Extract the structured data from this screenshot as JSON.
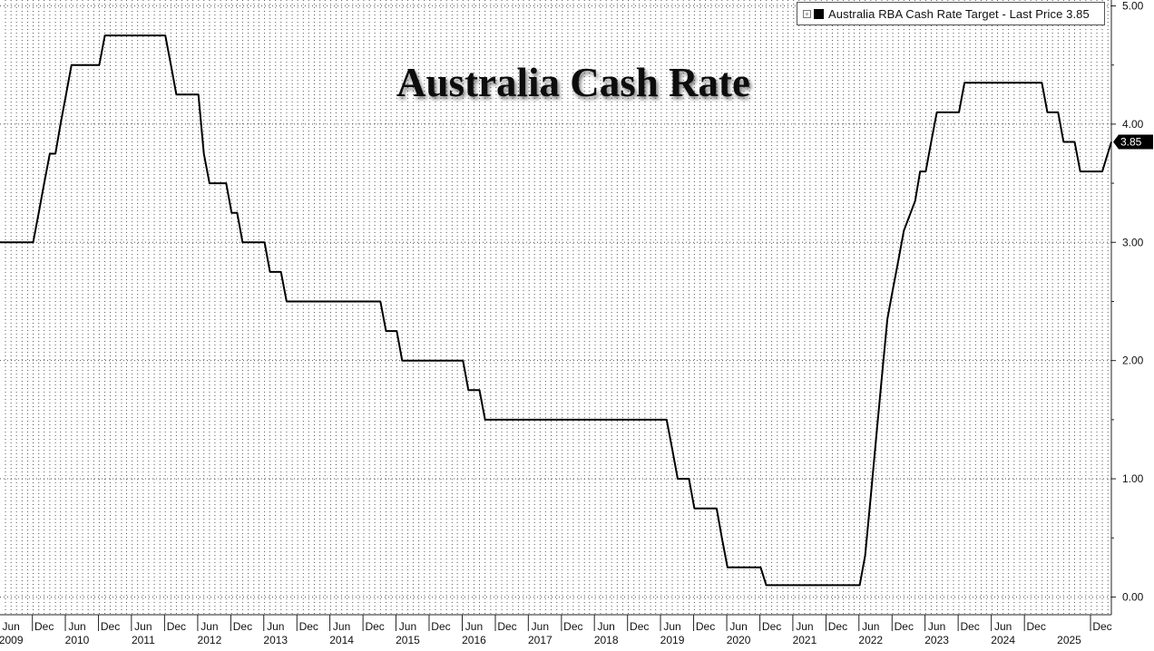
{
  "chart_data": {
    "type": "line",
    "title": "Australia Cash Rate",
    "legend": {
      "label": "Australia RBA Cash Rate Target - Last Price 3.85",
      "placement": "top-right"
    },
    "last_value_label": "3.85",
    "xlim": [
      "2009-04-01",
      "2026-01-20"
    ],
    "ylim": [
      -0.15,
      5.05
    ],
    "y_ticks": [
      {
        "value": 0,
        "label": "0.00"
      },
      {
        "value": 1,
        "label": "1.00"
      },
      {
        "value": 2,
        "label": "2.00"
      },
      {
        "value": 3,
        "label": "3.00"
      },
      {
        "value": 4,
        "label": "4.00"
      },
      {
        "value": 5,
        "label": "5.00"
      }
    ],
    "x_month_ticks": [
      {
        "date": "2009-06-01",
        "label": "Jun"
      },
      {
        "date": "2009-12-01",
        "label": "Dec"
      },
      {
        "date": "2010-06-01",
        "label": "Jun"
      },
      {
        "date": "2010-12-01",
        "label": "Dec"
      },
      {
        "date": "2011-06-01",
        "label": "Jun"
      },
      {
        "date": "2011-12-01",
        "label": "Dec"
      },
      {
        "date": "2012-06-01",
        "label": "Jun"
      },
      {
        "date": "2012-12-01",
        "label": "Dec"
      },
      {
        "date": "2013-06-01",
        "label": "Jun"
      },
      {
        "date": "2013-12-01",
        "label": "Dec"
      },
      {
        "date": "2014-06-01",
        "label": "Jun"
      },
      {
        "date": "2014-12-01",
        "label": "Dec"
      },
      {
        "date": "2015-06-01",
        "label": "Jun"
      },
      {
        "date": "2015-12-01",
        "label": "Dec"
      },
      {
        "date": "2016-06-01",
        "label": "Jun"
      },
      {
        "date": "2016-12-01",
        "label": "Dec"
      },
      {
        "date": "2017-06-01",
        "label": "Jun"
      },
      {
        "date": "2017-12-01",
        "label": "Dec"
      },
      {
        "date": "2018-06-01",
        "label": "Jun"
      },
      {
        "date": "2018-12-01",
        "label": "Dec"
      },
      {
        "date": "2019-06-01",
        "label": "Jun"
      },
      {
        "date": "2019-12-01",
        "label": "Dec"
      },
      {
        "date": "2020-06-01",
        "label": "Jun"
      },
      {
        "date": "2020-12-01",
        "label": "Dec"
      },
      {
        "date": "2021-06-01",
        "label": "Jun"
      },
      {
        "date": "2021-12-01",
        "label": "Dec"
      },
      {
        "date": "2022-06-01",
        "label": "Jun"
      },
      {
        "date": "2022-12-01",
        "label": "Dec"
      },
      {
        "date": "2023-06-01",
        "label": "Jun"
      },
      {
        "date": "2023-12-01",
        "label": "Dec"
      },
      {
        "date": "2024-06-01",
        "label": "Jun"
      },
      {
        "date": "2024-12-01",
        "label": "Dec"
      },
      {
        "date": "2025-12-01",
        "label": "Dec"
      }
    ],
    "x_year_labels": [
      {
        "date": "2009-06-01",
        "label": "2009"
      },
      {
        "date": "2010-06-01",
        "label": "2010"
      },
      {
        "date": "2011-06-01",
        "label": "2011"
      },
      {
        "date": "2012-06-01",
        "label": "2012"
      },
      {
        "date": "2013-06-01",
        "label": "2013"
      },
      {
        "date": "2014-06-01",
        "label": "2014"
      },
      {
        "date": "2015-06-01",
        "label": "2015"
      },
      {
        "date": "2016-06-01",
        "label": "2016"
      },
      {
        "date": "2017-06-01",
        "label": "2017"
      },
      {
        "date": "2018-06-01",
        "label": "2018"
      },
      {
        "date": "2019-06-01",
        "label": "2019"
      },
      {
        "date": "2020-06-01",
        "label": "2020"
      },
      {
        "date": "2021-06-01",
        "label": "2021"
      },
      {
        "date": "2022-06-01",
        "label": "2022"
      },
      {
        "date": "2023-06-01",
        "label": "2023"
      },
      {
        "date": "2024-06-01",
        "label": "2024"
      },
      {
        "date": "2025-06-01",
        "label": "2025"
      }
    ],
    "grid": true,
    "series": [
      {
        "name": "Australia RBA Cash Rate Target",
        "color": "#000000",
        "points": [
          [
            "2009-04-01",
            3.0
          ],
          [
            "2009-10-01",
            3.0
          ],
          [
            "2009-11-01",
            3.25
          ],
          [
            "2009-12-01",
            3.5
          ],
          [
            "2010-01-01",
            3.75
          ],
          [
            "2010-02-01",
            3.75
          ],
          [
            "2010-03-01",
            4.0
          ],
          [
            "2010-04-01",
            4.25
          ],
          [
            "2010-05-01",
            4.5
          ],
          [
            "2010-10-01",
            4.5
          ],
          [
            "2010-11-01",
            4.75
          ],
          [
            "2011-10-01",
            4.75
          ],
          [
            "2011-11-01",
            4.5
          ],
          [
            "2011-12-01",
            4.25
          ],
          [
            "2012-04-01",
            4.25
          ],
          [
            "2012-05-01",
            3.75
          ],
          [
            "2012-06-01",
            3.5
          ],
          [
            "2012-09-01",
            3.5
          ],
          [
            "2012-10-01",
            3.25
          ],
          [
            "2012-11-01",
            3.25
          ],
          [
            "2012-12-01",
            3.0
          ],
          [
            "2013-04-01",
            3.0
          ],
          [
            "2013-05-01",
            2.75
          ],
          [
            "2013-07-01",
            2.75
          ],
          [
            "2013-08-01",
            2.5
          ],
          [
            "2015-01-01",
            2.5
          ],
          [
            "2015-02-01",
            2.25
          ],
          [
            "2015-04-01",
            2.25
          ],
          [
            "2015-05-01",
            2.0
          ],
          [
            "2016-04-01",
            2.0
          ],
          [
            "2016-05-01",
            1.75
          ],
          [
            "2016-07-01",
            1.75
          ],
          [
            "2016-08-01",
            1.5
          ],
          [
            "2019-05-01",
            1.5
          ],
          [
            "2019-06-01",
            1.25
          ],
          [
            "2019-07-01",
            1.0
          ],
          [
            "2019-09-01",
            1.0
          ],
          [
            "2019-10-01",
            0.75
          ],
          [
            "2020-02-01",
            0.75
          ],
          [
            "2020-03-01",
            0.5
          ],
          [
            "2020-04-01",
            0.25
          ],
          [
            "2020-10-01",
            0.25
          ],
          [
            "2020-11-01",
            0.1
          ],
          [
            "2022-04-01",
            0.1
          ],
          [
            "2022-05-01",
            0.35
          ],
          [
            "2022-06-01",
            0.85
          ],
          [
            "2022-07-01",
            1.35
          ],
          [
            "2022-08-01",
            1.85
          ],
          [
            "2022-09-01",
            2.35
          ],
          [
            "2022-10-01",
            2.6
          ],
          [
            "2022-11-01",
            2.85
          ],
          [
            "2022-12-01",
            3.1
          ],
          [
            "2023-02-01",
            3.35
          ],
          [
            "2023-03-01",
            3.6
          ],
          [
            "2023-04-01",
            3.6
          ],
          [
            "2023-05-01",
            3.85
          ],
          [
            "2023-06-01",
            4.1
          ],
          [
            "2023-10-01",
            4.1
          ],
          [
            "2023-11-01",
            4.35
          ],
          [
            "2025-01-01",
            4.35
          ],
          [
            "2025-02-01",
            4.1
          ],
          [
            "2025-04-01",
            4.1
          ],
          [
            "2025-05-01",
            3.85
          ],
          [
            "2025-07-01",
            3.85
          ],
          [
            "2025-08-01",
            3.6
          ],
          [
            "2025-12-01",
            3.6
          ],
          [
            "2026-01-20",
            3.85
          ]
        ]
      }
    ]
  }
}
